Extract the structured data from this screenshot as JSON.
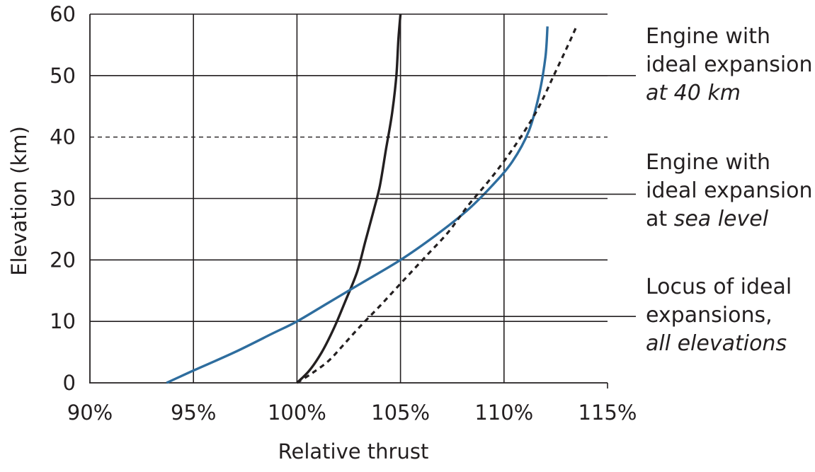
{
  "chart_data": {
    "type": "line",
    "xlabel": "Relative thrust",
    "ylabel": "Elevation (km)",
    "xlim": [
      90,
      115
    ],
    "ylim": [
      0,
      60
    ],
    "x_ticks": [
      "90%",
      "95%",
      "100%",
      "105%",
      "110%",
      "115%"
    ],
    "y_ticks": [
      "0",
      "10",
      "20",
      "30",
      "40",
      "50",
      "60"
    ],
    "grid": true,
    "reference_line": {
      "y": 40,
      "style": "dashed"
    },
    "series": [
      {
        "key": "sea_level",
        "color": "#231f20",
        "style": "solid",
        "x": [
          100.0,
          100.6,
          101.2,
          101.8,
          102.3,
          102.9,
          103.3,
          103.7,
          104.0,
          104.3,
          104.6,
          104.8,
          104.9,
          105.0
        ],
        "y": [
          0,
          2,
          5,
          9,
          13,
          18,
          23,
          28,
          32,
          38,
          44,
          50,
          56,
          60
        ]
      },
      {
        "key": "ideal_40km",
        "color": "#2e6d9e",
        "style": "solid",
        "x": [
          93.7,
          95.0,
          97.0,
          98.8,
          100.0,
          101.5,
          103.0,
          105.0,
          106.7,
          108.2,
          109.4,
          110.4,
          111.2,
          111.7,
          112.0,
          112.1
        ],
        "y": [
          0,
          2,
          5,
          8,
          10,
          13,
          16,
          20,
          24,
          28,
          32,
          36,
          41,
          47,
          53,
          58
        ]
      },
      {
        "key": "locus",
        "color": "#231f20",
        "style": "dashed",
        "x": [
          100.0,
          100.7,
          101.5,
          102.2,
          103.0,
          104.0,
          105.1,
          106.2,
          107.3,
          108.3,
          109.3,
          110.2,
          111.0,
          111.7,
          112.4,
          113.1,
          113.5
        ],
        "y": [
          0,
          1.5,
          3.5,
          6,
          9,
          12.5,
          16.5,
          20.5,
          24.5,
          29,
          33,
          37,
          41,
          45,
          50,
          55,
          58
        ]
      }
    ],
    "annotations": [
      {
        "series": "ideal_40km",
        "line_at": {
          "x": 112.0,
          "y": 50
        },
        "lines": [
          {
            "normal": "Engine with"
          },
          {
            "normal": "ideal expansion"
          },
          {
            "italic": "at 40 km"
          }
        ]
      },
      {
        "series": "sea_level",
        "line_at": {
          "x": 104.0,
          "y": 30.7
        },
        "lines": [
          {
            "normal": "Engine with"
          },
          {
            "normal": "ideal expansion"
          },
          {
            "normal": "at ",
            "italic": "sea level"
          }
        ]
      },
      {
        "series": "locus",
        "line_at": {
          "x": 103.4,
          "y": 10.8
        },
        "lines": [
          {
            "normal": "Locus of ideal"
          },
          {
            "normal": "expansions,"
          },
          {
            "italic": "all elevations"
          }
        ]
      }
    ]
  }
}
